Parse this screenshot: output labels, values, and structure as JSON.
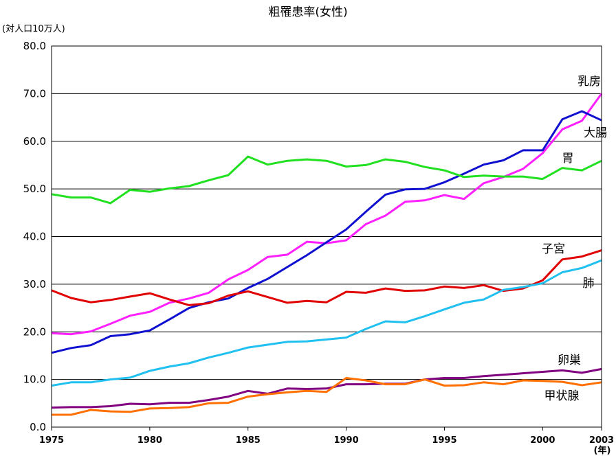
{
  "chart_data": {
    "type": "line",
    "title": "粗罹患率(女性)",
    "ylabel": "(対人口10万人)",
    "xlabel": "(年)",
    "ylim": [
      0,
      80
    ],
    "xlim": [
      1975,
      2003
    ],
    "y_ticks": [
      "0.0",
      "10.0",
      "20.0",
      "30.0",
      "40.0",
      "50.0",
      "60.0",
      "70.0",
      "80.0"
    ],
    "x_ticks": [
      "1975",
      "1980",
      "1985",
      "1990",
      "1995",
      "2000",
      "2003"
    ],
    "grid": true,
    "x": [
      1975,
      1976,
      1977,
      1978,
      1979,
      1980,
      1981,
      1982,
      1983,
      1984,
      1985,
      1986,
      1987,
      1988,
      1989,
      1990,
      1991,
      1992,
      1993,
      1994,
      1995,
      1996,
      1997,
      1998,
      1999,
      2000,
      2001,
      2002,
      2003
    ],
    "series": [
      {
        "name": "乳房",
        "color": "#ff20ff",
        "values": [
          19.7,
          19.5,
          20.1,
          21.7,
          23.4,
          24.2,
          26.1,
          27.0,
          28.2,
          31.0,
          33.0,
          35.7,
          36.2,
          38.9,
          38.6,
          39.2,
          42.6,
          44.4,
          47.3,
          47.6,
          48.7,
          47.9,
          51.2,
          52.5,
          54.2,
          57.5,
          62.5,
          64.3,
          70.0
        ]
      },
      {
        "name": "大腸",
        "color": "#1010d0",
        "values": [
          15.6,
          16.6,
          17.2,
          19.1,
          19.5,
          20.3,
          22.6,
          25.0,
          26.2,
          27.0,
          29.2,
          31.1,
          33.6,
          36.1,
          38.8,
          41.5,
          45.2,
          48.8,
          49.9,
          50.0,
          51.4,
          53.2,
          55.1,
          56.0,
          58.1,
          58.1,
          64.6,
          66.3,
          64.4
        ]
      },
      {
        "name": "胃",
        "color": "#20e020",
        "values": [
          48.9,
          48.2,
          48.2,
          47.0,
          49.8,
          49.4,
          50.1,
          50.6,
          51.8,
          52.9,
          56.8,
          55.1,
          55.9,
          56.2,
          55.9,
          54.7,
          55.0,
          56.2,
          55.7,
          54.6,
          53.9,
          52.5,
          52.8,
          52.6,
          52.6,
          52.1,
          54.4,
          53.9,
          55.9
        ]
      },
      {
        "name": "子宮",
        "color": "#e00000",
        "values": [
          28.7,
          27.1,
          26.2,
          26.7,
          27.4,
          28.1,
          26.8,
          25.6,
          26.0,
          27.6,
          28.5,
          27.3,
          26.1,
          26.5,
          26.2,
          28.4,
          28.2,
          29.1,
          28.6,
          28.7,
          29.5,
          29.2,
          29.8,
          28.6,
          29.1,
          30.8,
          35.2,
          35.8,
          37.1
        ]
      },
      {
        "name": "肺",
        "color": "#20c0f0",
        "values": [
          8.7,
          9.4,
          9.4,
          10.0,
          10.4,
          11.8,
          12.7,
          13.4,
          14.6,
          15.6,
          16.7,
          17.3,
          17.9,
          18.0,
          18.4,
          18.8,
          20.6,
          22.2,
          22.0,
          23.3,
          24.7,
          26.1,
          26.8,
          28.8,
          29.4,
          30.2,
          32.5,
          33.4,
          35.0
        ]
      },
      {
        "name": "卵巣",
        "color": "#800080",
        "values": [
          4.1,
          4.2,
          4.2,
          4.4,
          4.9,
          4.8,
          5.1,
          5.1,
          5.7,
          6.4,
          7.6,
          7.0,
          8.1,
          8.0,
          8.1,
          9.0,
          9.0,
          9.1,
          9.1,
          10.0,
          10.3,
          10.3,
          10.7,
          11.0,
          11.3,
          11.6,
          11.9,
          11.4,
          12.2
        ]
      },
      {
        "name": "甲状腺",
        "color": "#ff7000",
        "values": [
          2.6,
          2.6,
          3.6,
          3.3,
          3.2,
          3.9,
          4.0,
          4.2,
          5.0,
          5.1,
          6.4,
          6.9,
          7.3,
          7.6,
          7.4,
          10.3,
          9.8,
          9.0,
          9.0,
          10.0,
          8.7,
          8.8,
          9.4,
          9.0,
          9.8,
          9.7,
          9.5,
          8.8,
          9.4
        ]
      }
    ]
  }
}
